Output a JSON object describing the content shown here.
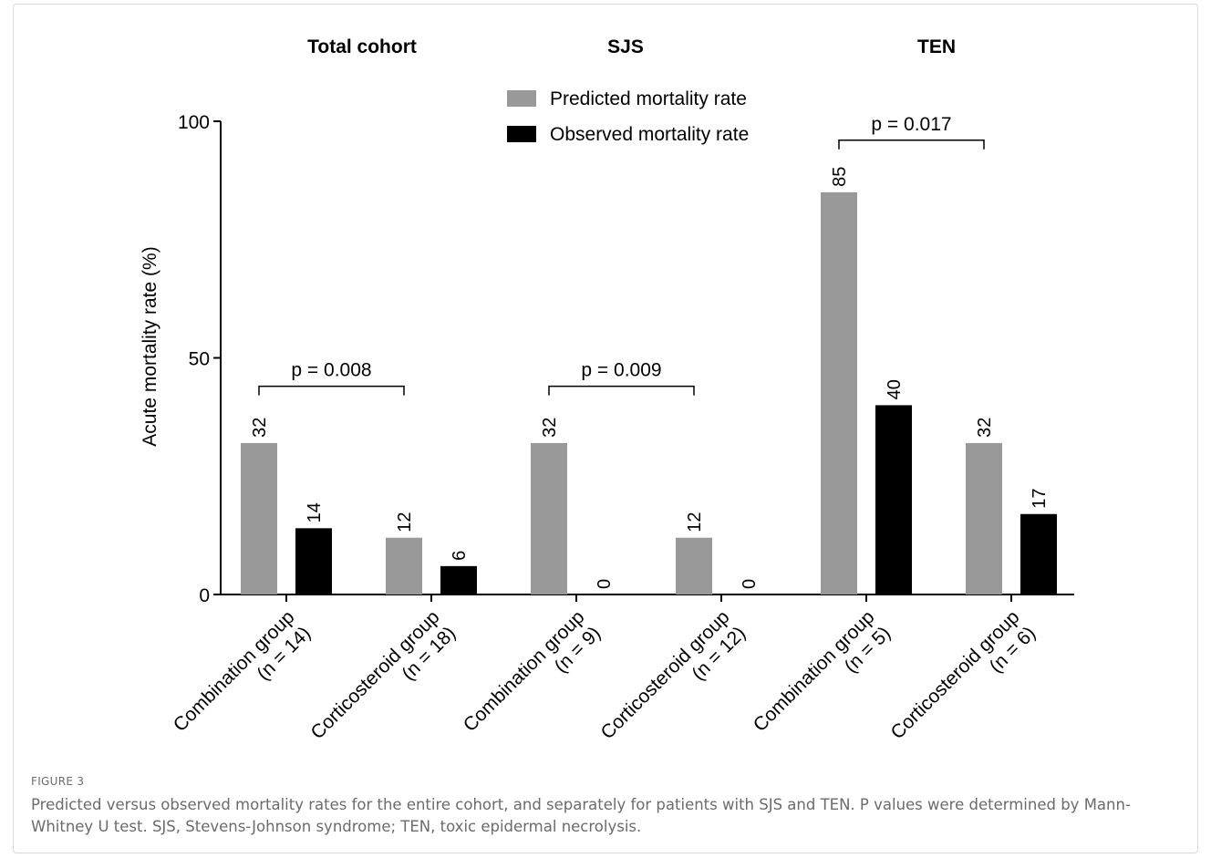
{
  "chart_data": {
    "type": "bar",
    "ylabel": "Acute mortality rate (%)",
    "ylim": [
      0,
      100
    ],
    "yticks": [
      0,
      50,
      100
    ],
    "legend_placement": "top-center",
    "panels": [
      {
        "title": "Total cohort"
      },
      {
        "title": "SJS"
      },
      {
        "title": "TEN"
      }
    ],
    "categories": [
      [
        "Combination group",
        "(n = 14)"
      ],
      [
        "Corticosteroid group",
        "(n = 18)"
      ],
      [
        "Combination group",
        "(n = 9)"
      ],
      [
        "Corticosteroid group",
        "(n = 12)"
      ],
      [
        "Combination group",
        "(n = 5)"
      ],
      [
        "Corticosteroid group",
        "(n = 6)"
      ]
    ],
    "series": [
      {
        "name": "Predicted mortality rate",
        "color": "#999999",
        "values": [
          32,
          12,
          32,
          12,
          85,
          32
        ]
      },
      {
        "name": "Observed mortality rate",
        "color": "#000000",
        "values": [
          14,
          6,
          0,
          0,
          40,
          17
        ]
      }
    ],
    "annotations": [
      {
        "text": "p = 0.008",
        "from": 0,
        "to": 1,
        "y": 44
      },
      {
        "text": "p = 0.009",
        "from": 2,
        "to": 3,
        "y": 44
      },
      {
        "text": "p = 0.017",
        "from": 4,
        "to": 5,
        "y": 96
      }
    ]
  },
  "figure": {
    "label": "FIGURE 3",
    "caption": "Predicted versus observed mortality rates for the entire cohort, and separately for patients with SJS and TEN. P values were determined by Mann-Whitney U test. SJS, Stevens-Johnson syndrome; TEN, toxic epidermal necrolysis."
  }
}
